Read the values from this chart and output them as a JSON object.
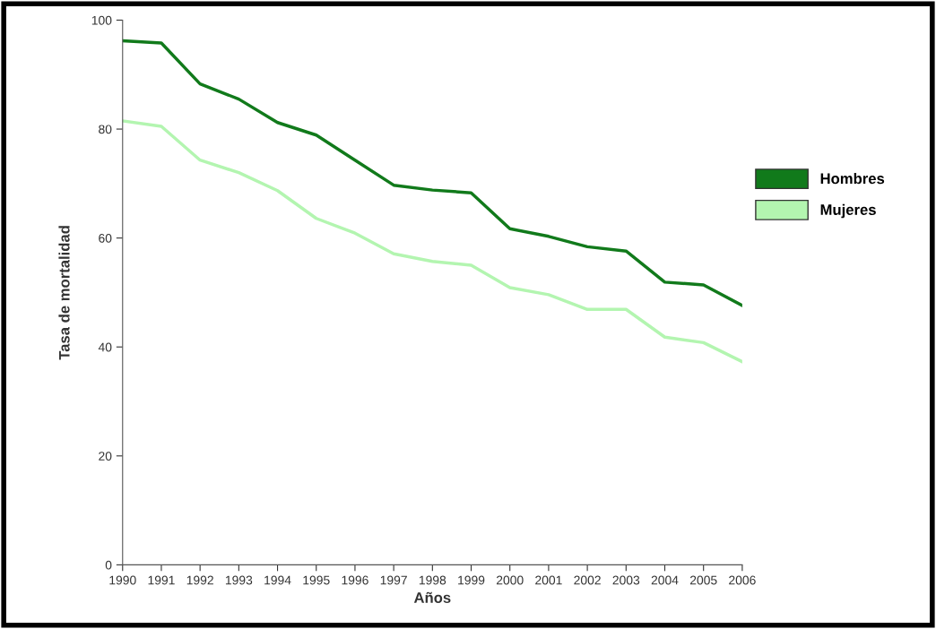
{
  "chart_data": {
    "type": "line",
    "xlabel": "Años",
    "ylabel": "Tasa de mortalidad",
    "x": [
      1990,
      1991,
      1992,
      1993,
      1994,
      1995,
      1996,
      1997,
      1998,
      1999,
      2000,
      2001,
      2002,
      2003,
      2004,
      2005,
      2006
    ],
    "series": [
      {
        "name": "Hombres",
        "color": "#117a1b",
        "values": [
          96.2,
          95.8,
          88.3,
          85.5,
          81.2,
          78.9,
          74.3,
          69.7,
          68.8,
          68.3,
          61.7,
          60.3,
          58.4,
          57.6,
          51.9,
          51.4,
          47.6
        ]
      },
      {
        "name": "Mujeres",
        "color": "#b3f5b0",
        "values": [
          81.5,
          80.5,
          74.3,
          72.0,
          68.7,
          63.6,
          60.9,
          57.1,
          55.7,
          55.0,
          50.9,
          49.6,
          46.9,
          46.9,
          41.8,
          40.8,
          37.3
        ]
      }
    ],
    "xlim": [
      1990,
      2006
    ],
    "xticks": [
      1990,
      1991,
      1992,
      1993,
      1994,
      1995,
      1996,
      1997,
      1998,
      1999,
      2000,
      2001,
      2002,
      2003,
      2004,
      2005,
      2006
    ],
    "ylim": [
      0,
      100
    ],
    "yticks": [
      0,
      20,
      40,
      60,
      80,
      100
    ],
    "grid": false,
    "legend": "right",
    "marker": "none",
    "line_style": "solid"
  }
}
